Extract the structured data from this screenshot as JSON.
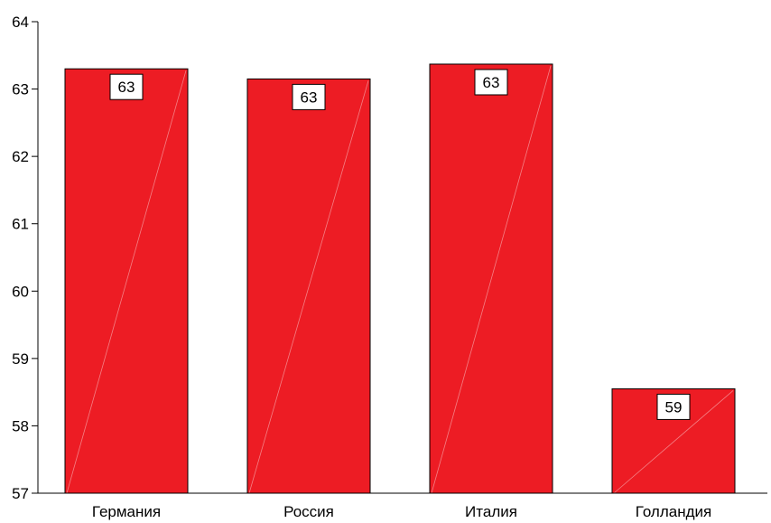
{
  "chart_data": {
    "type": "bar",
    "categories": [
      "Германия",
      "Россия",
      "Италия",
      "Голландия"
    ],
    "values": [
      63.3,
      63.15,
      63.37,
      58.55
    ],
    "value_labels": [
      "63",
      "63",
      "63",
      "59"
    ],
    "ylim": [
      57,
      64
    ],
    "yticks": [
      "57",
      "58",
      "59",
      "60",
      "61",
      "62",
      "63",
      "64"
    ],
    "title": "",
    "xlabel": "",
    "ylabel": "",
    "grid": false,
    "bar_color": "#ed1c24",
    "bar_edge_color": "#000000"
  }
}
